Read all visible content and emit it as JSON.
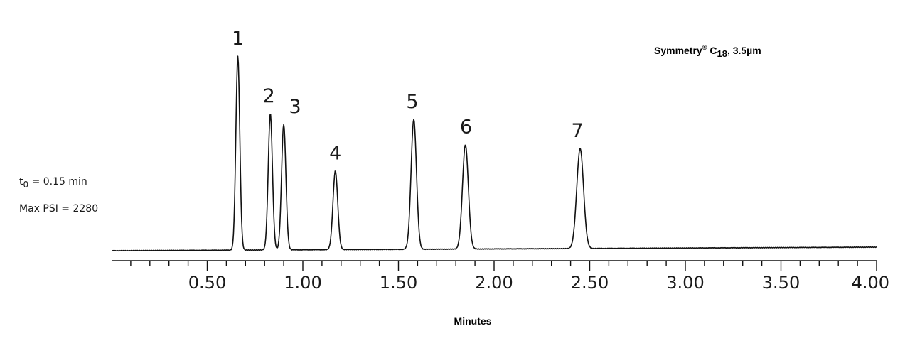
{
  "chart_data": {
    "type": "line",
    "xlabel": "Minutes",
    "ylabel": "",
    "xlim": [
      0.0,
      4.0
    ],
    "major_ticks": [
      0.5,
      1.0,
      1.5,
      2.0,
      2.5,
      3.0,
      3.5,
      4.0
    ],
    "tick_labels": [
      "0.50",
      "1.00",
      "1.50",
      "2.00",
      "2.50",
      "3.00",
      "3.50",
      "4.00"
    ],
    "minor_tick_step": 0.1,
    "grid": false,
    "peaks": [
      {
        "label": "1",
        "retention_time": 0.66,
        "height": 0.91
      },
      {
        "label": "2",
        "retention_time": 0.83,
        "height": 0.64
      },
      {
        "label": "3",
        "retention_time": 0.9,
        "height": 0.59
      },
      {
        "label": "4",
        "retention_time": 1.17,
        "height": 0.37
      },
      {
        "label": "5",
        "retention_time": 1.58,
        "height": 0.61
      },
      {
        "label": "6",
        "retention_time": 1.85,
        "height": 0.49
      },
      {
        "label": "7",
        "retention_time": 2.45,
        "height": 0.47
      }
    ]
  },
  "column": {
    "name": "Symmetry",
    "mark": "®",
    "phase_prefix": "C",
    "phase_subscript": "18",
    "particle": ", 3.5µm"
  },
  "conditions": {
    "t0_symbol": "t",
    "t0_subscript": "0",
    "t0_value": " = 0.15 min",
    "max_psi": "Max PSI = 2280"
  }
}
